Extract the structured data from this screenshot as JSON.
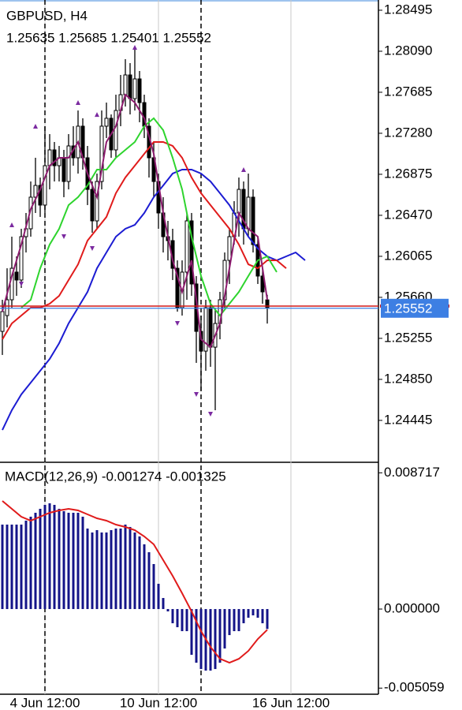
{
  "chart_data": [
    {
      "type": "candlestick",
      "title": "GBPUSD, H4",
      "subtitle": "1.25635 1.25685 1.25401 1.25552",
      "x": [
        0,
        1,
        2,
        3,
        4,
        5,
        6,
        7,
        8,
        9,
        10,
        11,
        12,
        13,
        14,
        15,
        16,
        17,
        18,
        19,
        20,
        21,
        22,
        23,
        24,
        25,
        26,
        27,
        28,
        29,
        30,
        31,
        32,
        33,
        34,
        35,
        36,
        37,
        38,
        39,
        40,
        41,
        42,
        43,
        44,
        45,
        46,
        47,
        48,
        49,
        50,
        51,
        52,
        53,
        54,
        55,
        56
      ],
      "open": [
        1.25324,
        1.2548,
        1.25636,
        1.25909,
        1.25831,
        1.26259,
        1.26337,
        1.26649,
        1.26765,
        1.26571,
        1.2696,
        1.27116,
        1.2696,
        1.27038,
        1.26804,
        1.27155,
        1.27038,
        1.2735,
        1.27038,
        1.26726,
        1.26415,
        1.26804,
        1.2735,
        1.27428,
        1.27116,
        1.27505,
        1.27661,
        1.27856,
        1.27622,
        1.27817,
        1.27583,
        1.2735,
        1.27038,
        1.26804,
        1.26493,
        1.26259,
        1.2622,
        1.25947,
        1.25558,
        1.25909,
        1.26415,
        1.25792,
        1.25324,
        1.25129,
        1.25558,
        1.25168,
        1.25402,
        1.25636,
        1.26025,
        1.26259,
        1.26493,
        1.26726,
        1.26337,
        1.26649,
        1.26181,
        1.2587,
        1.25635
      ],
      "high": [
        1.25636,
        1.25947,
        1.26259,
        1.26064,
        1.26337,
        1.26493,
        1.26804,
        1.27038,
        1.26843,
        1.2735,
        1.27272,
        1.27194,
        1.27155,
        1.27116,
        1.27272,
        1.2735,
        1.27505,
        1.27428,
        1.27155,
        1.26804,
        1.26882,
        1.27505,
        1.27583,
        1.27466,
        1.27661,
        1.27856,
        1.28012,
        1.27973,
        1.28129,
        1.27895,
        1.27661,
        1.27428,
        1.27194,
        1.26882,
        1.26649,
        1.26415,
        1.26337,
        1.26025,
        1.26025,
        1.26493,
        1.26493,
        1.2587,
        1.2548,
        1.25636,
        1.25636,
        1.25558,
        1.25714,
        1.26103,
        1.26337,
        1.2661,
        1.26843,
        1.26804,
        1.26882,
        1.26726,
        1.26259,
        1.25947,
        1.25685
      ],
      "low": [
        1.25091,
        1.25363,
        1.25558,
        1.25675,
        1.25753,
        1.26103,
        1.26259,
        1.26493,
        1.26454,
        1.26493,
        1.26726,
        1.26804,
        1.26804,
        1.26649,
        1.26726,
        1.2696,
        1.26882,
        1.26921,
        1.26571,
        1.26298,
        1.26337,
        1.26726,
        1.27233,
        1.27038,
        1.27038,
        1.2735,
        1.27544,
        1.27466,
        1.27505,
        1.27389,
        1.27233,
        1.26843,
        1.26649,
        1.26337,
        1.26103,
        1.26025,
        1.25831,
        1.25519,
        1.2548,
        1.25636,
        1.25675,
        1.25013,
        1.2474,
        1.24935,
        1.24974,
        1.24545,
        1.25246,
        1.25558,
        1.25792,
        1.26181,
        1.26259,
        1.26181,
        1.26259,
        1.26103,
        1.25792,
        1.25597,
        1.25401
      ],
      "close": [
        1.25519,
        1.25636,
        1.25947,
        1.25831,
        1.26259,
        1.26337,
        1.26649,
        1.26765,
        1.26571,
        1.2696,
        1.27116,
        1.2696,
        1.27038,
        1.26804,
        1.27155,
        1.27038,
        1.2735,
        1.27038,
        1.26726,
        1.26415,
        1.26804,
        1.2735,
        1.27428,
        1.27116,
        1.27505,
        1.27661,
        1.27856,
        1.27622,
        1.27817,
        1.27583,
        1.2735,
        1.27038,
        1.26804,
        1.26493,
        1.26259,
        1.2622,
        1.25947,
        1.25558,
        1.25909,
        1.26415,
        1.25792,
        1.25324,
        1.25129,
        1.25558,
        1.25168,
        1.25402,
        1.25636,
        1.26025,
        1.26259,
        1.26493,
        1.26726,
        1.26337,
        1.26649,
        1.26181,
        1.2587,
        1.25714,
        1.25552
      ],
      "up_color": "#ffffff",
      "down_color": "#000000",
      "wick_color": "#000000",
      "lines": [
        {
          "color": "#1c1cd2",
          "x": [
            0,
            2,
            4,
            6,
            8,
            10,
            12,
            14,
            16,
            18,
            20,
            22,
            24,
            26,
            28,
            30,
            32,
            34,
            36,
            38,
            40,
            42,
            44,
            46,
            48,
            50,
            52,
            54,
            56,
            58,
            60,
            62,
            64
          ],
          "values": [
            1.2435,
            1.24545,
            1.24701,
            1.24818,
            1.24935,
            1.25052,
            1.25207,
            1.25402,
            1.25558,
            1.25714,
            1.25947,
            1.26103,
            1.26259,
            1.26337,
            1.26376,
            1.26493,
            1.26649,
            1.26765,
            1.26882,
            1.26921,
            1.26921,
            1.26882,
            1.26804,
            1.26688,
            1.26571,
            1.26415,
            1.26259,
            1.26142,
            1.26064,
            1.26025,
            1.26064,
            1.26103,
            1.26025
          ]
        },
        {
          "color": "#e01b1b",
          "x": [
            0,
            2,
            4,
            6,
            8,
            10,
            12,
            14,
            16,
            18,
            20,
            22,
            24,
            26,
            28,
            30,
            32,
            34,
            36,
            38,
            40,
            42,
            44,
            46,
            48,
            50,
            52,
            54,
            56,
            58,
            60
          ],
          "values": [
            1.25246,
            1.25402,
            1.2548,
            1.25558,
            1.25558,
            1.25597,
            1.25675,
            1.25831,
            1.25986,
            1.2622,
            1.26337,
            1.26454,
            1.26688,
            1.26843,
            1.2696,
            1.27077,
            1.27194,
            1.27194,
            1.27155,
            1.27038,
            1.26843,
            1.26688,
            1.26571,
            1.26454,
            1.26337,
            1.26181,
            1.25986,
            1.25947,
            1.26025,
            1.26025,
            1.25947
          ]
        },
        {
          "color": "#2ed42e",
          "x": [
            4,
            6,
            8,
            10,
            12,
            14,
            16,
            18,
            20,
            22,
            24,
            26,
            28,
            30,
            32,
            34,
            36,
            38,
            40,
            42,
            44,
            46,
            48,
            50,
            52,
            54,
            56,
            58
          ],
          "values": [
            1.25558,
            1.25636,
            1.25947,
            1.26181,
            1.26337,
            1.26571,
            1.26649,
            1.26765,
            1.26921,
            1.26921,
            1.27038,
            1.27116,
            1.27194,
            1.2735,
            1.27428,
            1.27311,
            1.27038,
            1.26726,
            1.26259,
            1.2587,
            1.25597,
            1.2548,
            1.25597,
            1.25714,
            1.2587,
            1.26025,
            1.26064,
            1.25909
          ]
        },
        {
          "color": "#8c1b6e",
          "x": [
            0,
            2,
            4,
            6,
            8,
            10,
            12,
            14,
            16,
            18,
            20,
            22,
            24,
            26,
            28,
            30,
            32,
            34,
            36,
            38,
            40,
            42,
            44,
            46,
            48,
            50,
            52,
            54,
            56
          ],
          "values": [
            1.25519,
            1.2587,
            1.26181,
            1.26532,
            1.26726,
            1.2696,
            1.27038,
            1.27038,
            1.27194,
            1.26882,
            1.26649,
            1.27194,
            1.2735,
            1.27661,
            1.27583,
            1.27428,
            1.27077,
            1.26493,
            1.26025,
            1.25714,
            1.26025,
            1.25246,
            1.25168,
            1.25402,
            1.25947,
            1.26493,
            1.26337,
            1.26259,
            1.25636
          ]
        }
      ],
      "fractal_color": "#7b2aa0",
      "fractals_up": {
        "x": [
          2,
          7,
          16,
          20,
          28,
          51
        ],
        "values": [
          1.26376,
          1.2735,
          1.27583,
          1.27466,
          1.28129,
          1.26921
        ]
      },
      "fractals_down": {
        "x": [
          4,
          13,
          19,
          37,
          41,
          44
        ],
        "values": [
          1.25792,
          1.26259,
          1.26142,
          1.25402,
          1.24701,
          1.24506
        ]
      },
      "bid": 1.25552,
      "bid_color": "#3d7fe3",
      "ask": 1.25574,
      "ask_color": "#d01818",
      "separators": [
        9,
        42
      ],
      "grid": true,
      "xlim": [
        -0.5,
        79.5
      ],
      "ylim": [
        1.24039,
        1.28596
      ],
      "yticks": [
        1.28495,
        {
          "value": 1.2809,
          "label": "1.28090"
        },
        1.27685,
        {
          "value": 1.2728,
          "label": "1.27280"
        },
        1.26875,
        {
          "value": 1.2647,
          "label": "1.26470"
        },
        1.26065,
        {
          "value": 1.2566,
          "label": "1.25660"
        },
        1.25255,
        {
          "value": 1.2485,
          "label": "1.24850"
        },
        1.24445
      ],
      "xticks": [
        {
          "value": 9,
          "label": "4 Jun 12:00"
        },
        {
          "value": 33,
          "label": "10 Jun 12:00"
        },
        {
          "value": 61,
          "label": "16 Jun 12:00"
        }
      ]
    },
    {
      "type": "macd",
      "title": "MACD(12,26,9) -0.001274 -0.001325",
      "x": [
        0,
        1,
        2,
        3,
        4,
        5,
        6,
        7,
        8,
        9,
        10,
        11,
        12,
        13,
        14,
        15,
        16,
        17,
        18,
        19,
        20,
        21,
        22,
        23,
        24,
        25,
        26,
        27,
        28,
        29,
        30,
        31,
        32,
        33,
        34,
        35,
        36,
        37,
        38,
        39,
        40,
        41,
        42,
        43,
        44,
        45,
        46,
        47,
        48,
        49,
        50,
        51,
        52,
        53,
        54,
        55,
        56
      ],
      "values": [
        0.005404,
        0.005404,
        0.005404,
        0.005404,
        0.005404,
        0.005656,
        0.005909,
        0.006161,
        0.006414,
        0.006666,
        0.006767,
        0.006666,
        0.006414,
        0.006262,
        0.006161,
        0.006161,
        0.006161,
        0.005909,
        0.005151,
        0.004899,
        0.00505,
        0.004899,
        0.004899,
        0.00505,
        0.005151,
        0.005151,
        0.005404,
        0.005252,
        0.004899,
        0.004646,
        0.004141,
        0.003636,
        0.002879,
        0.001616,
        0.000707,
        -0.00015,
        -0.000909,
        -0.001162,
        -0.001414,
        -0.001414,
        -0.002929,
        -0.003434,
        -0.003838,
        -0.003939,
        -0.003939,
        -0.003838,
        -0.003434,
        -0.002525,
        -0.001667,
        -0.001414,
        -0.001414,
        -0.000909,
        -0.000556,
        -0.000404,
        -0.000556,
        -0.000909,
        -0.001274
      ],
      "color": "#141488",
      "signal": {
        "color": "#e01b1b",
        "x": [
          0,
          2,
          4,
          6,
          8,
          10,
          12,
          14,
          16,
          18,
          20,
          22,
          24,
          26,
          28,
          30,
          32,
          34,
          36,
          38,
          40,
          42,
          44,
          46,
          48,
          50,
          52,
          54,
          56
        ],
        "values": [
          0.006919,
          0.006414,
          0.005909,
          0.005656,
          0.005909,
          0.006161,
          0.006313,
          0.006414,
          0.006313,
          0.00606,
          0.005808,
          0.005656,
          0.005404,
          0.005252,
          0.00505,
          0.004646,
          0.004141,
          0.003131,
          0.002121,
          0.00101,
          -0.000152,
          -0.001414,
          -0.002424,
          -0.003182,
          -0.003434,
          -0.003182,
          -0.002677,
          -0.001919,
          -0.001325
        ]
      },
      "xlim": [
        -0.5,
        79.5
      ],
      "ylim": [
        -0.00545,
        0.00934
      ],
      "yticks": [
        0.008717,
        {
          "value": 0,
          "label": "0.000000"
        },
        -0.005059
      ]
    }
  ]
}
